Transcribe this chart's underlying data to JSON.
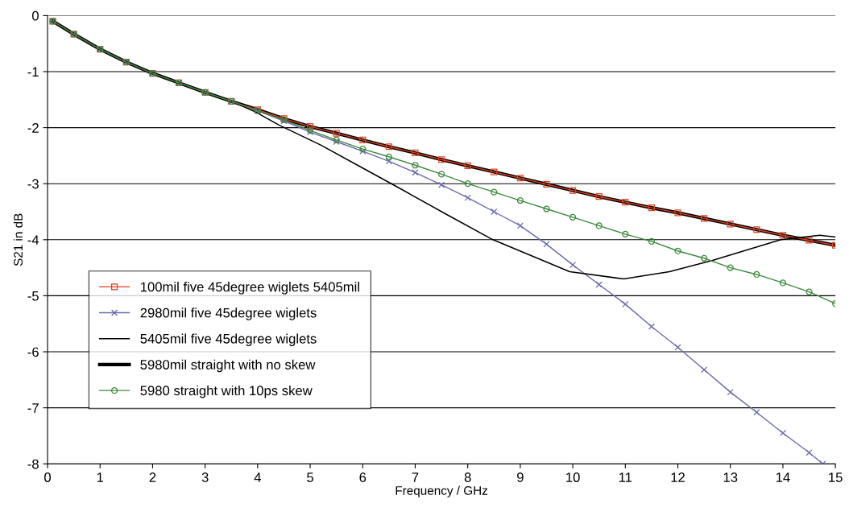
{
  "chart_data": {
    "type": "line",
    "xlabel": "Frequency / GHz",
    "ylabel": "S21 in dB",
    "xlim": [
      0,
      15
    ],
    "xticks": [
      0,
      1,
      2,
      3,
      4,
      5,
      6,
      7,
      8,
      9,
      10,
      11,
      12,
      13,
      14,
      15
    ],
    "ylim": [
      -8,
      0
    ],
    "yticks": [
      -8,
      -7,
      -6,
      -5,
      -4,
      -3,
      -2,
      -1,
      0
    ],
    "grid": "y",
    "legend": "bottom left",
    "line_style": "solid",
    "series": [
      {
        "name": "5980mil straight with no skew",
        "color": "#000000",
        "marker": "none",
        "x": [
          0.1,
          0.5,
          1,
          1.5,
          2,
          2.5,
          3,
          3.5,
          4,
          4.5,
          5,
          5.5,
          6,
          6.5,
          7,
          7.5,
          8,
          8.5,
          9,
          9.5,
          10,
          10.5,
          11,
          11.5,
          12,
          12.5,
          13,
          13.5,
          14,
          14.5,
          15
        ],
        "values": [
          -0.1,
          -0.33,
          -0.6,
          -0.83,
          -1.03,
          -1.2,
          -1.37,
          -1.53,
          -1.68,
          -1.84,
          -1.98,
          -2.1,
          -2.22,
          -2.34,
          -2.45,
          -2.57,
          -2.68,
          -2.79,
          -2.9,
          -3.01,
          -3.12,
          -3.23,
          -3.33,
          -3.43,
          -3.52,
          -3.62,
          -3.72,
          -3.82,
          -3.92,
          -4.01,
          -4.1
        ]
      },
      {
        "name": "100mil five 45degree wiglets 5405mil",
        "color": "#e0401c",
        "marker": "square",
        "x": [
          0.1,
          0.5,
          1,
          1.5,
          2,
          2.5,
          3,
          3.5,
          4,
          4.5,
          5,
          5.5,
          6,
          6.5,
          7,
          7.5,
          8,
          8.5,
          9,
          9.5,
          10,
          10.5,
          11,
          11.5,
          12,
          12.5,
          13,
          13.5,
          14,
          14.5,
          15
        ],
        "values": [
          -0.1,
          -0.33,
          -0.6,
          -0.83,
          -1.03,
          -1.2,
          -1.37,
          -1.53,
          -1.68,
          -1.84,
          -1.98,
          -2.1,
          -2.22,
          -2.34,
          -2.45,
          -2.57,
          -2.68,
          -2.79,
          -2.9,
          -3.01,
          -3.12,
          -3.23,
          -3.33,
          -3.43,
          -3.52,
          -3.62,
          -3.72,
          -3.82,
          -3.92,
          -4.01,
          -4.1
        ]
      },
      {
        "name": "2980mil five 45degree wiglets",
        "color": "#6a6aaa",
        "marker": "cross",
        "x": [
          0.1,
          0.5,
          1,
          1.5,
          2,
          2.5,
          3,
          3.5,
          4,
          4.5,
          5,
          5.5,
          6,
          6.5,
          7,
          7.5,
          8,
          8.5,
          9,
          9.5,
          10,
          10.5,
          11,
          11.5,
          12,
          12.5,
          13,
          13.5,
          14,
          14.5,
          14.76
        ],
        "values": [
          -0.1,
          -0.33,
          -0.6,
          -0.83,
          -1.03,
          -1.2,
          -1.37,
          -1.53,
          -1.7,
          -1.88,
          -2.08,
          -2.25,
          -2.42,
          -2.6,
          -2.8,
          -3.02,
          -3.25,
          -3.5,
          -3.75,
          -4.08,
          -4.45,
          -4.8,
          -5.15,
          -5.55,
          -5.92,
          -6.32,
          -6.72,
          -7.08,
          -7.45,
          -7.8,
          -8.0
        ]
      },
      {
        "name": "5405mil five 45degree wiglets",
        "color": "#000000",
        "marker": "none",
        "x": [
          0.1,
          0.5,
          1,
          1.5,
          2,
          2.5,
          3,
          3.5,
          3.96,
          4.4,
          5.2,
          6,
          6.7,
          7.6,
          8.48,
          9.94,
          10.97,
          11.84,
          12.66,
          13.96,
          14.7,
          15
        ],
        "values": [
          -0.1,
          -0.33,
          -0.6,
          -0.83,
          -1.03,
          -1.2,
          -1.37,
          -1.53,
          -1.72,
          -1.95,
          -2.31,
          -2.72,
          -3.08,
          -3.55,
          -4.0,
          -4.57,
          -4.7,
          -4.57,
          -4.37,
          -4.0,
          -3.92,
          -3.95
        ]
      },
      {
        "name": "5980 straight with 10ps skew",
        "color": "#3c8a3c",
        "marker": "circle",
        "x": [
          0.1,
          0.5,
          1,
          1.5,
          2,
          2.5,
          3,
          3.5,
          4,
          4.5,
          5,
          5.5,
          6,
          6.5,
          7,
          7.5,
          8,
          8.5,
          9,
          9.5,
          10,
          10.5,
          11,
          11.5,
          12,
          12.5,
          13,
          13.5,
          14,
          14.5,
          15
        ],
        "values": [
          -0.1,
          -0.33,
          -0.6,
          -0.83,
          -1.03,
          -1.2,
          -1.37,
          -1.53,
          -1.7,
          -1.86,
          -2.05,
          -2.22,
          -2.38,
          -2.52,
          -2.67,
          -2.83,
          -3.0,
          -3.15,
          -3.3,
          -3.45,
          -3.6,
          -3.75,
          -3.9,
          -4.03,
          -4.2,
          -4.33,
          -4.5,
          -4.62,
          -4.77,
          -4.93,
          -5.14
        ]
      }
    ]
  }
}
